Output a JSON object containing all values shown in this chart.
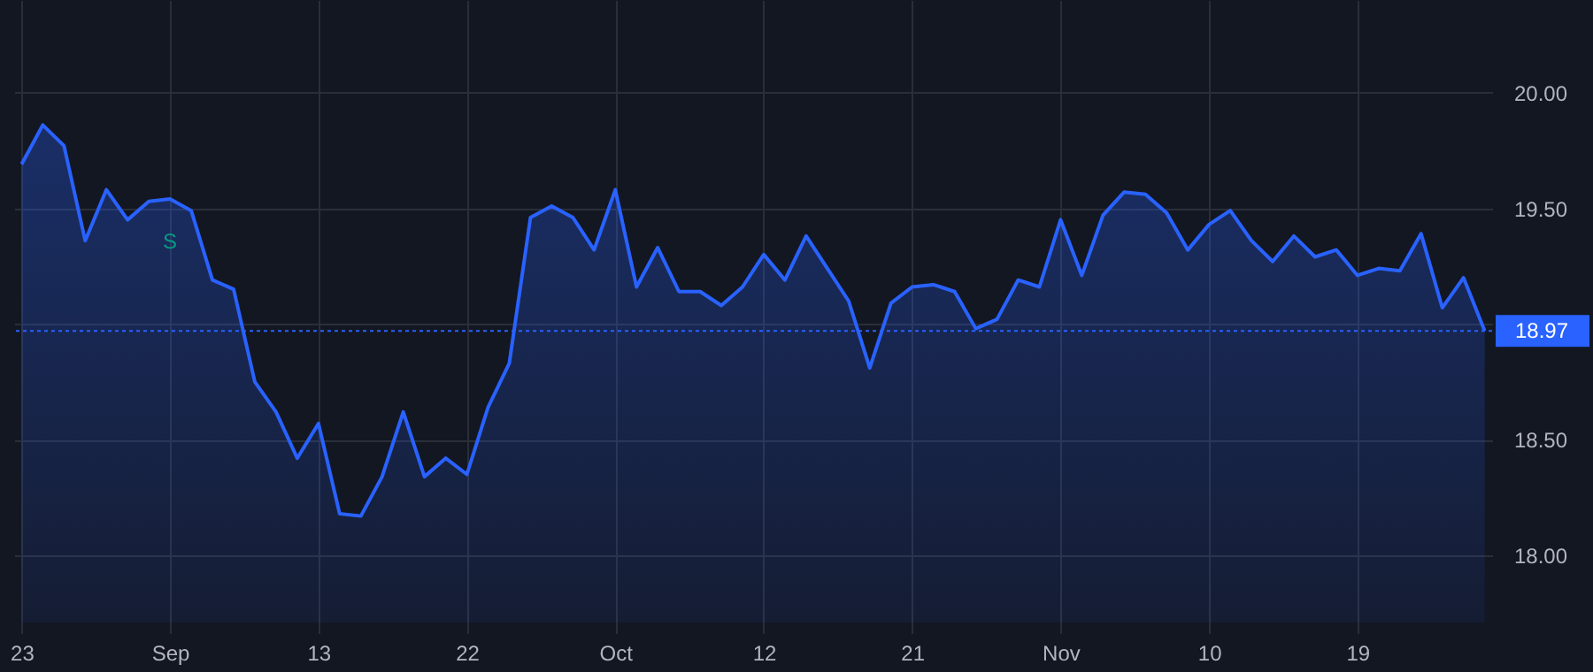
{
  "chart_data": {
    "type": "area",
    "categories": [
      "23",
      null,
      null,
      null,
      null,
      null,
      null,
      "Sep",
      null,
      null,
      null,
      null,
      null,
      null,
      "13",
      null,
      null,
      null,
      null,
      null,
      null,
      "22",
      null,
      null,
      null,
      null,
      null,
      null,
      "Oct",
      null,
      null,
      null,
      null,
      null,
      null,
      "12",
      null,
      null,
      null,
      null,
      null,
      null,
      "21",
      null,
      null,
      null,
      null,
      null,
      null,
      "Nov",
      null,
      null,
      null,
      null,
      null,
      null,
      "10",
      null,
      null,
      null,
      null,
      null,
      null,
      "19",
      null,
      null,
      null,
      null,
      null,
      null
    ],
    "series": [
      {
        "color": "#2962ff",
        "values": [
          19.69,
          19.86,
          19.77,
          19.36,
          19.58,
          19.45,
          19.53,
          19.54,
          19.49,
          19.19,
          19.15,
          18.75,
          18.62,
          18.42,
          18.57,
          18.18,
          18.17,
          18.34,
          18.62,
          18.34,
          18.42,
          18.35,
          18.64,
          18.83,
          19.46,
          19.51,
          19.46,
          19.32,
          19.58,
          19.16,
          19.33,
          19.14,
          19.14,
          19.08,
          19.16,
          19.3,
          19.19,
          19.38,
          19.24,
          19.1,
          18.81,
          19.09,
          19.16,
          19.17,
          19.14,
          18.98,
          19.02,
          19.19,
          19.16,
          19.45,
          19.21,
          19.47,
          19.57,
          19.56,
          19.48,
          19.32,
          19.43,
          19.49,
          19.36,
          19.27,
          19.38,
          19.29,
          19.32,
          19.21,
          19.24,
          19.23,
          19.39,
          19.07,
          19.2,
          18.97
        ]
      }
    ],
    "ylim": [
      17.71,
      20.4
    ],
    "yticks": [
      {
        "value": 18,
        "label": "18.00"
      },
      {
        "value": 18.5,
        "label": "18.50"
      },
      {
        "value": 19,
        "label": null
      },
      {
        "value": 19.5,
        "label": "19.50"
      },
      {
        "value": 20,
        "label": "20.00"
      }
    ],
    "ref_lines": [
      {
        "axis": "y",
        "value": 18.97,
        "label": "18.97",
        "color": "#2962ff",
        "line_style": "dotted"
      }
    ],
    "annotations": [
      {
        "text": "S",
        "x": "Sep",
        "y": 19.54
      }
    ],
    "grid": true
  }
}
